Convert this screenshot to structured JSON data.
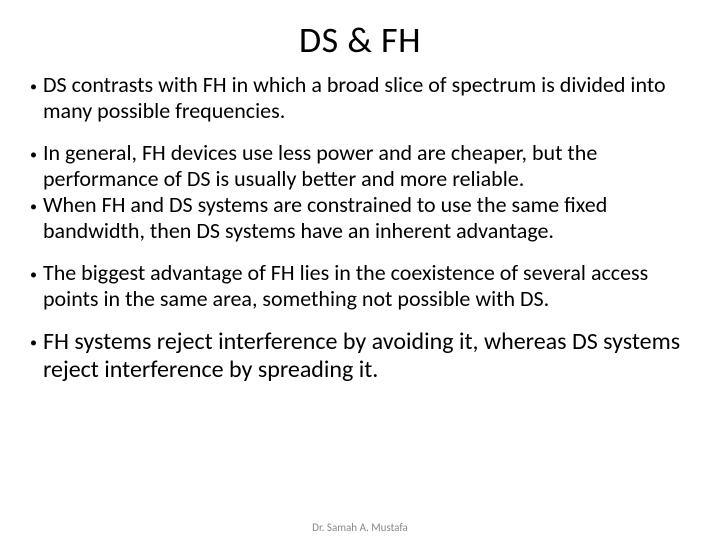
{
  "title": "DS & FH",
  "bullets": {
    "group1": {
      "item1": "DS contrasts with FH in which a broad slice of spectrum is divided into many possible frequencies."
    },
    "group2": {
      "item1": "In general, FH devices use less power and are cheaper, but the performance of DS is usually better and more reliable.",
      "item2": "When FH and DS systems are constrained to use the same fixed bandwidth, then DS systems have an inherent advantage."
    },
    "group3": {
      "item1": "The biggest advantage of FH lies in the coexistence of several access points in the same area, something not possible with DS."
    },
    "group4": {
      "item1": "FH systems reject interference by avoiding it, whereas DS systems reject interference by spreading it."
    }
  },
  "footer": "Dr. Samah A. Mustafa",
  "colors": {
    "background": "#ffffff",
    "text": "#000000",
    "footer_text": "#888888"
  },
  "fonts": {
    "title_size": 36,
    "body_size": 22,
    "body_large_size": 24,
    "footer_size": 11
  }
}
